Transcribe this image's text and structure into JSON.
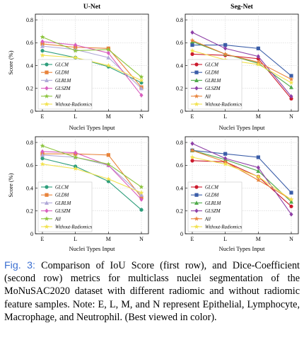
{
  "figure": {
    "caption_label": "Fig. 3:",
    "caption_text": "Comparison of IoU Score (first row), and Dice-Coefficient (second row) metrics for multiclass nuclei segmentation of the MoNuSAC2020 dataset with different radiomic and without radiomic feature samples. Note: E, L, M, and N represent Epithelial, Lymphocyte, Macrophage, and Neutrophil. (Best viewed in color)."
  },
  "chart_data": [
    {
      "type": "line",
      "panel": "top-left",
      "title": "U-Net",
      "xlabel": "Nuclei Types Input",
      "ylabel": "Score (%)",
      "categories": [
        "E",
        "L",
        "M",
        "N"
      ],
      "ylim": [
        0,
        0.85
      ],
      "yticks": [
        0,
        0.2,
        0.4,
        0.6,
        0.8
      ],
      "legend_position": "bottom-left",
      "series": [
        {
          "name": "GLCM",
          "color": "#2e9e7c",
          "marker": "circle",
          "values": [
            0.53,
            0.47,
            0.39,
            0.25
          ]
        },
        {
          "name": "GLDM",
          "color": "#e8833a",
          "marker": "square",
          "values": [
            0.59,
            0.56,
            0.55,
            0.21
          ]
        },
        {
          "name": "GLRLM",
          "color": "#b0a9d8",
          "marker": "triangle",
          "values": [
            0.57,
            0.54,
            0.47,
            0.2
          ]
        },
        {
          "name": "GLSZM",
          "color": "#d95fbf",
          "marker": "diamond",
          "values": [
            0.61,
            0.58,
            0.51,
            0.14
          ]
        },
        {
          "name": "All",
          "color": "#8cc43c",
          "marker": "star",
          "values": [
            0.65,
            0.53,
            0.54,
            0.3
          ]
        },
        {
          "name": "Without-Radiomics",
          "color": "#f2e24e",
          "marker": "star",
          "values": [
            0.49,
            0.47,
            0.4,
            0.27
          ]
        }
      ]
    },
    {
      "type": "line",
      "panel": "top-right",
      "title": "Seg-Net",
      "xlabel": "Nuclei Types Input",
      "ylabel": "",
      "categories": [
        "E",
        "L",
        "M",
        "N"
      ],
      "ylim": [
        0,
        0.85
      ],
      "yticks": [
        0,
        0.2,
        0.4,
        0.6,
        0.8
      ],
      "legend_position": "bottom-left",
      "series": [
        {
          "name": "GLCM",
          "color": "#cc1a2c",
          "marker": "circle",
          "values": [
            0.5,
            0.49,
            0.46,
            0.11
          ]
        },
        {
          "name": "GLDM",
          "color": "#3a5da8",
          "marker": "square",
          "values": [
            0.58,
            0.58,
            0.55,
            0.31
          ]
        },
        {
          "name": "GLRLM",
          "color": "#4faa4a",
          "marker": "triangle",
          "values": [
            0.61,
            0.5,
            0.42,
            0.21
          ]
        },
        {
          "name": "GLSZM",
          "color": "#8e3fa6",
          "marker": "diamond",
          "values": [
            0.69,
            0.55,
            0.48,
            0.13
          ]
        },
        {
          "name": "All",
          "color": "#e8833a",
          "marker": "star",
          "values": [
            0.62,
            0.5,
            0.43,
            0.28
          ]
        },
        {
          "name": "Without-Radiomics",
          "color": "#f2e24e",
          "marker": "star",
          "values": [
            0.53,
            0.45,
            0.41,
            0.25
          ]
        }
      ]
    },
    {
      "type": "line",
      "panel": "bottom-left",
      "title": "",
      "xlabel": "Nuclei Types Input",
      "ylabel": "Score (%)",
      "categories": [
        "E",
        "L",
        "M",
        "N"
      ],
      "ylim": [
        0,
        0.85
      ],
      "yticks": [
        0,
        0.2,
        0.4,
        0.6,
        0.8
      ],
      "legend_position": "bottom-left",
      "series": [
        {
          "name": "GLCM",
          "color": "#2e9e7c",
          "marker": "circle",
          "values": [
            0.66,
            0.59,
            0.46,
            0.21
          ]
        },
        {
          "name": "GLDM",
          "color": "#e8833a",
          "marker": "square",
          "values": [
            0.7,
            0.7,
            0.69,
            0.32
          ]
        },
        {
          "name": "GLRLM",
          "color": "#b0a9d8",
          "marker": "triangle",
          "values": [
            0.69,
            0.67,
            0.6,
            0.34
          ]
        },
        {
          "name": "GLSZM",
          "color": "#d95fbf",
          "marker": "diamond",
          "values": [
            0.72,
            0.71,
            0.6,
            0.3
          ]
        },
        {
          "name": "All",
          "color": "#8cc43c",
          "marker": "star",
          "values": [
            0.77,
            0.67,
            0.61,
            0.41
          ]
        },
        {
          "name": "Without-Radiomics",
          "color": "#f2e24e",
          "marker": "star",
          "values": [
            0.61,
            0.57,
            0.48,
            0.36
          ]
        }
      ]
    },
    {
      "type": "line",
      "panel": "bottom-right",
      "title": "",
      "xlabel": "Nuclei Types Input",
      "ylabel": "",
      "categories": [
        "E",
        "L",
        "M",
        "N"
      ],
      "ylim": [
        0,
        0.85
      ],
      "yticks": [
        0,
        0.2,
        0.4,
        0.6,
        0.8
      ],
      "legend_position": "bottom-left",
      "series": [
        {
          "name": "GLCM",
          "color": "#cc1a2c",
          "marker": "circle",
          "values": [
            0.64,
            0.63,
            0.5,
            0.24
          ]
        },
        {
          "name": "GLDM",
          "color": "#3a5da8",
          "marker": "square",
          "values": [
            0.73,
            0.7,
            0.67,
            0.36
          ]
        },
        {
          "name": "GLRLM",
          "color": "#4faa4a",
          "marker": "triangle",
          "values": [
            0.73,
            0.65,
            0.55,
            0.28
          ]
        },
        {
          "name": "GLSZM",
          "color": "#8e3fa6",
          "marker": "diamond",
          "values": [
            0.79,
            0.66,
            0.58,
            0.17
          ]
        },
        {
          "name": "All",
          "color": "#e8833a",
          "marker": "star",
          "values": [
            0.73,
            0.63,
            0.47,
            0.3
          ]
        },
        {
          "name": "Without-Radiomics",
          "color": "#f2e24e",
          "marker": "star",
          "values": [
            0.67,
            0.61,
            0.5,
            0.3
          ]
        }
      ]
    }
  ]
}
